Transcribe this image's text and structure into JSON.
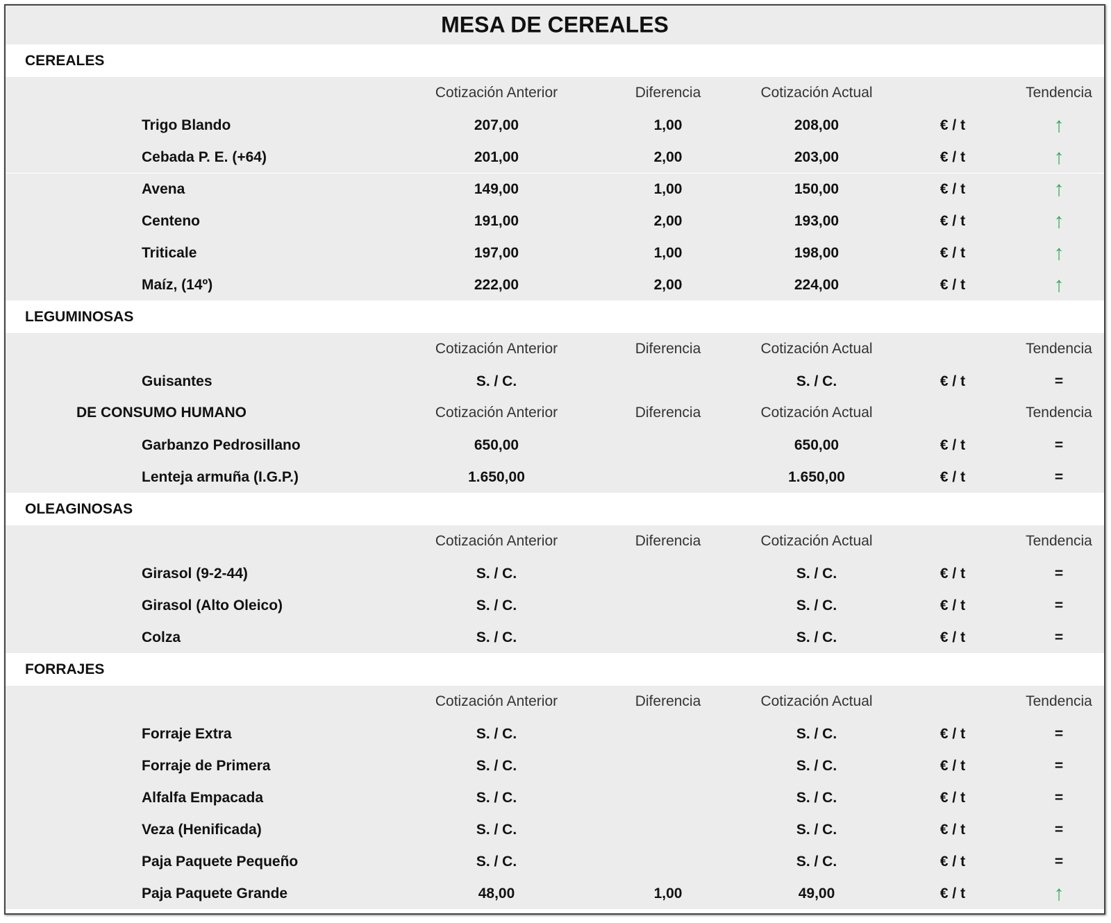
{
  "title": "MESA DE CEREALES",
  "sections": [
    {
      "name": "CEREALES",
      "groups": [
        {
          "columns": [
            "Cotización Anterior",
            "Diferencia",
            "Cotización Actual",
            "Tendencia"
          ],
          "rows": [
            {
              "name": "Trigo Blando",
              "prev": "207,00",
              "diff": "1,00",
              "curr": "208,00",
              "unit": "€ / t",
              "trend": "↑"
            },
            {
              "name": "Cebada P. E. (+64)",
              "prev": "201,00",
              "diff": "2,00",
              "curr": "203,00",
              "unit": "€ / t",
              "trend": "↑"
            },
            {
              "name": "Avena",
              "prev": "149,00",
              "diff": "1,00",
              "curr": "150,00",
              "unit": "€ / t",
              "trend": "↑"
            },
            {
              "name": "Centeno",
              "prev": "191,00",
              "diff": "2,00",
              "curr": "193,00",
              "unit": "€ / t",
              "trend": "↑"
            },
            {
              "name": "Triticale",
              "prev": "197,00",
              "diff": "1,00",
              "curr": "198,00",
              "unit": "€ / t",
              "trend": "↑"
            },
            {
              "name": "Maíz, (14º)",
              "prev": "222,00",
              "diff": "2,00",
              "curr": "224,00",
              "unit": "€ / t",
              "trend": "↑"
            }
          ]
        }
      ]
    },
    {
      "name": "LEGUMINOSAS",
      "groups": [
        {
          "columns": [
            "Cotización Anterior",
            "Diferencia",
            "Cotización Actual",
            "Tendencia"
          ],
          "rows": [
            {
              "name": "Guisantes",
              "prev": "S. / C.",
              "curr": "S. / C.",
              "unit": "€ / t",
              "trend": "="
            }
          ]
        },
        {
          "label": "DE CONSUMO HUMANO",
          "columns": [
            "Cotización Anterior",
            "Diferencia",
            "Cotización Actual",
            "Tendencia"
          ],
          "rows": [
            {
              "name": "Garbanzo Pedrosillano",
              "prev": "650,00",
              "curr": "650,00",
              "unit": "€ / t",
              "trend": "="
            },
            {
              "name": "Lenteja armuña (I.G.P.)",
              "prev": "1.650,00",
              "curr": "1.650,00",
              "unit": "€ / t",
              "trend": "="
            }
          ]
        }
      ]
    },
    {
      "name": "OLEAGINOSAS",
      "groups": [
        {
          "columns": [
            "Cotización Anterior",
            "Diferencia",
            "Cotización Actual",
            "Tendencia"
          ],
          "rows": [
            {
              "name": "Girasol (9-2-44)",
              "prev": "S. / C.",
              "curr": "S. / C.",
              "unit": "€ / t",
              "trend": "="
            },
            {
              "name": "Girasol (Alto Oleico)",
              "prev": "S. / C.",
              "curr": "S. / C.",
              "unit": "€ / t",
              "trend": "="
            },
            {
              "name": "Colza",
              "prev": "S. / C.",
              "curr": "S. / C.",
              "unit": "€ / t",
              "trend": "="
            }
          ]
        }
      ]
    },
    {
      "name": "FORRAJES",
      "groups": [
        {
          "columns": [
            "Cotización Anterior",
            "Diferencia",
            "Cotización Actual",
            "Tendencia"
          ],
          "rows": [
            {
              "name": "Forraje Extra",
              "prev": "S. / C.",
              "curr": "S. / C.",
              "unit": "€ / t",
              "trend": "="
            },
            {
              "name": "Forraje de Primera",
              "prev": "S. / C.",
              "curr": "S. / C.",
              "unit": "€ / t",
              "trend": "="
            },
            {
              "name": "Alfalfa Empacada",
              "prev": "S. / C.",
              "curr": "S. / C.",
              "unit": "€ / t",
              "trend": "="
            },
            {
              "name": "Veza (Henificada)",
              "prev": "S. / C.",
              "curr": "S. / C.",
              "unit": "€ / t",
              "trend": "="
            },
            {
              "name": "Paja Paquete Pequeño",
              "prev": "S. / C.",
              "curr": "S. / C.",
              "unit": "€ / t",
              "trend": "="
            },
            {
              "name": "Paja Paquete Grande",
              "prev": "48,00",
              "diff": "1,00",
              "curr": "49,00",
              "unit": "€ / t",
              "trend": "↑"
            }
          ]
        }
      ]
    }
  ]
}
